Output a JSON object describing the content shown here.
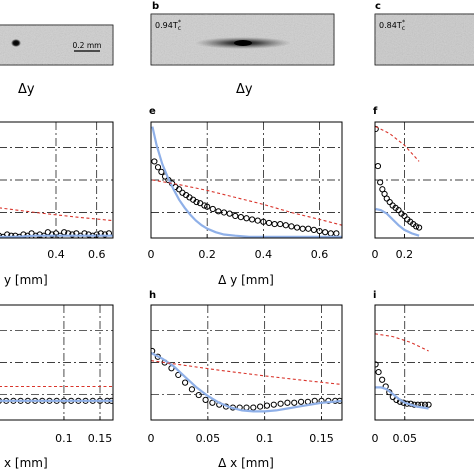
{
  "colors": {
    "experiment_marker": "#000000",
    "theory_solid": "#8fb0e8",
    "theory_dashed": "#d9342b",
    "grid": "#000000",
    "image_bg": "#cfcfcf"
  },
  "images": [
    {
      "panel": "a",
      "label": "",
      "temperature": "",
      "scalebar": "0.2 mm",
      "xlabel": "Δy"
    },
    {
      "panel": "b",
      "label": "b",
      "temperature": "0.94T",
      "temperature_sub": "c",
      "temperature_sup": "*",
      "xlabel": "Δy"
    },
    {
      "panel": "c",
      "label": "c",
      "temperature": "0.84T",
      "temperature_sub": "c",
      "temperature_sup": "*",
      "xlabel": ""
    }
  ],
  "chart_data": [
    {
      "panel": "d",
      "label": "",
      "type": "line",
      "xlabel": "y [mm]",
      "xlabel_prefix": "",
      "xlim": [
        0.12,
        0.68
      ],
      "xticks": [
        0.4,
        0.6
      ],
      "xticklabels": [
        "0.4",
        "0.6"
      ],
      "ylim": [
        0,
        1
      ],
      "grid": true,
      "series": [
        {
          "kind": "markers",
          "x": [
            0.12,
            0.14,
            0.16,
            0.18,
            0.2,
            0.22,
            0.24,
            0.26,
            0.28,
            0.3,
            0.32,
            0.34,
            0.36,
            0.38,
            0.4,
            0.42,
            0.44,
            0.46,
            0.48,
            0.5,
            0.52,
            0.54,
            0.56,
            0.58,
            0.6,
            0.62,
            0.64,
            0.66
          ],
          "y": [
            0.02,
            0.01,
            0.03,
            0.02,
            0.02,
            0.01,
            0.03,
            0.02,
            0.04,
            0.02,
            0.03,
            0.02,
            0.05,
            0.03,
            0.04,
            0.02,
            0.05,
            0.04,
            0.03,
            0.04,
            0.02,
            0.04,
            0.03,
            0.02,
            0.03,
            0.04,
            0.03,
            0.04
          ]
        },
        {
          "kind": "solid",
          "x": [
            0.12,
            0.2,
            0.3,
            0.4,
            0.5,
            0.6,
            0.68
          ],
          "y": [
            0.01,
            0.01,
            0.02,
            0.02,
            0.02,
            0.02,
            0.02
          ]
        },
        {
          "kind": "dashed",
          "x": [
            0.12,
            0.3,
            0.5,
            0.68
          ],
          "y": [
            0.26,
            0.22,
            0.18,
            0.15
          ]
        }
      ]
    },
    {
      "panel": "e",
      "label": "e",
      "type": "line",
      "xlabel": "y [mm]",
      "xlabel_prefix": "Δ",
      "xlim": [
        0,
        0.68
      ],
      "xticks": [
        0,
        0.2,
        0.4,
        0.6
      ],
      "xticklabels": [
        "0",
        "0.2",
        "0.4",
        "0.6"
      ],
      "ylim": [
        0,
        1
      ],
      "grid": true,
      "series": [
        {
          "kind": "markers",
          "x": [
            0.012,
            0.025,
            0.037,
            0.05,
            0.062,
            0.075,
            0.087,
            0.1,
            0.112,
            0.125,
            0.137,
            0.15,
            0.162,
            0.175,
            0.19,
            0.2,
            0.22,
            0.24,
            0.26,
            0.28,
            0.3,
            0.32,
            0.34,
            0.36,
            0.38,
            0.4,
            0.42,
            0.44,
            0.46,
            0.48,
            0.5,
            0.52,
            0.54,
            0.56,
            0.58,
            0.6,
            0.62,
            0.64,
            0.66
          ],
          "y": [
            0.66,
            0.61,
            0.57,
            0.53,
            0.5,
            0.47,
            0.44,
            0.42,
            0.39,
            0.37,
            0.35,
            0.33,
            0.31,
            0.3,
            0.28,
            0.27,
            0.25,
            0.23,
            0.22,
            0.21,
            0.19,
            0.18,
            0.17,
            0.16,
            0.15,
            0.14,
            0.13,
            0.12,
            0.12,
            0.11,
            0.1,
            0.09,
            0.08,
            0.08,
            0.07,
            0.06,
            0.05,
            0.04,
            0.04
          ]
        },
        {
          "kind": "solid",
          "x": [
            0.005,
            0.02,
            0.04,
            0.06,
            0.08,
            0.1,
            0.12,
            0.14,
            0.16,
            0.18,
            0.2,
            0.23,
            0.26,
            0.3,
            0.35,
            0.4,
            0.5,
            0.6,
            0.68
          ],
          "y": [
            0.96,
            0.8,
            0.64,
            0.52,
            0.42,
            0.33,
            0.26,
            0.2,
            0.15,
            0.11,
            0.08,
            0.05,
            0.03,
            0.02,
            0.01,
            0.01,
            0.01,
            0.01,
            0.01
          ]
        },
        {
          "kind": "dashed",
          "x": [
            0.005,
            0.1,
            0.2,
            0.3,
            0.4,
            0.5,
            0.6,
            0.68
          ],
          "y": [
            0.5,
            0.46,
            0.41,
            0.35,
            0.29,
            0.22,
            0.16,
            0.11
          ]
        }
      ]
    },
    {
      "panel": "f",
      "label": "f",
      "type": "line",
      "xlabel": "",
      "xlabel_prefix": "",
      "xlim": [
        0,
        0.68
      ],
      "xticks": [
        0,
        0.2
      ],
      "xticklabels": [
        "0",
        "0.2"
      ],
      "ylim": [
        0,
        1
      ],
      "grid": true,
      "series": [
        {
          "kind": "markers",
          "x": [
            0.005,
            0.02,
            0.035,
            0.05,
            0.065,
            0.08,
            0.1,
            0.12,
            0.14,
            0.16,
            0.18,
            0.2,
            0.22,
            0.24,
            0.26,
            0.28,
            0.3
          ],
          "y": [
            0.94,
            0.62,
            0.48,
            0.42,
            0.38,
            0.34,
            0.31,
            0.28,
            0.26,
            0.24,
            0.21,
            0.19,
            0.16,
            0.14,
            0.12,
            0.1,
            0.09
          ]
        },
        {
          "kind": "solid",
          "x": [
            0.005,
            0.04,
            0.08,
            0.12,
            0.16,
            0.2,
            0.25,
            0.3
          ],
          "y": [
            0.25,
            0.24,
            0.21,
            0.16,
            0.11,
            0.07,
            0.04,
            0.02
          ]
        },
        {
          "kind": "dashed",
          "x": [
            0.005,
            0.1,
            0.2,
            0.3
          ],
          "y": [
            0.96,
            0.9,
            0.8,
            0.66
          ]
        }
      ]
    },
    {
      "panel": "g",
      "label": "",
      "type": "line",
      "xlabel": "x [mm]",
      "xlabel_prefix": "",
      "xlim": [
        0.01,
        0.168
      ],
      "xticks": [
        0.1,
        0.15
      ],
      "xticklabels": [
        "0.1",
        "0.15"
      ],
      "ylim": [
        -0.2,
        1.0
      ],
      "grid": true,
      "series": [
        {
          "kind": "markers",
          "x": [
            0.01,
            0.02,
            0.03,
            0.04,
            0.05,
            0.06,
            0.07,
            0.08,
            0.09,
            0.1,
            0.11,
            0.12,
            0.13,
            0.14,
            0.15,
            0.16,
            0.166
          ],
          "y": [
            0,
            0,
            0,
            0,
            0,
            0,
            0,
            0,
            0,
            0,
            0,
            0,
            0,
            0,
            0,
            0,
            0
          ]
        },
        {
          "kind": "solid",
          "x": [
            0.01,
            0.168
          ],
          "y": [
            0,
            0
          ]
        },
        {
          "kind": "dashed",
          "x": [
            0.01,
            0.168
          ],
          "y": [
            0.15,
            0.15
          ]
        }
      ]
    },
    {
      "panel": "h",
      "label": "h",
      "type": "line",
      "xlabel": "x [mm]",
      "xlabel_prefix": "Δ",
      "xlim": [
        0,
        0.168
      ],
      "xticks": [
        0,
        0.05,
        0.1,
        0.15
      ],
      "xticklabels": [
        "0",
        "0.05",
        "0.1",
        "0.15"
      ],
      "ylim": [
        -0.2,
        1.0
      ],
      "grid": true,
      "series": [
        {
          "kind": "markers",
          "x": [
            0.001,
            0.006,
            0.012,
            0.018,
            0.024,
            0.03,
            0.036,
            0.042,
            0.048,
            0.054,
            0.06,
            0.066,
            0.072,
            0.078,
            0.084,
            0.09,
            0.096,
            0.102,
            0.108,
            0.114,
            0.12,
            0.126,
            0.132,
            0.138,
            0.144,
            0.15,
            0.156,
            0.162,
            0.166
          ],
          "y": [
            0.52,
            0.46,
            0.4,
            0.34,
            0.27,
            0.19,
            0.12,
            0.06,
            0.01,
            -0.02,
            -0.04,
            -0.06,
            -0.07,
            -0.07,
            -0.07,
            -0.07,
            -0.06,
            -0.05,
            -0.04,
            -0.03,
            -0.02,
            -0.02,
            -0.01,
            -0.01,
            0,
            0,
            0,
            0,
            0
          ]
        },
        {
          "kind": "solid",
          "x": [
            0,
            0.01,
            0.02,
            0.03,
            0.04,
            0.05,
            0.06,
            0.07,
            0.08,
            0.09,
            0.1,
            0.11,
            0.12,
            0.13,
            0.14,
            0.15,
            0.16,
            0.168
          ],
          "y": [
            0.5,
            0.44,
            0.36,
            0.25,
            0.14,
            0.05,
            -0.02,
            -0.07,
            -0.1,
            -0.11,
            -0.11,
            -0.1,
            -0.08,
            -0.06,
            -0.04,
            -0.02,
            -0.01,
            0
          ]
        },
        {
          "kind": "dashed",
          "x": [
            0,
            0.03,
            0.06,
            0.1,
            0.13,
            0.168
          ],
          "y": [
            0.42,
            0.37,
            0.32,
            0.26,
            0.22,
            0.17
          ]
        }
      ]
    },
    {
      "panel": "i",
      "label": "i",
      "type": "line",
      "xlabel": "",
      "xlabel_prefix": "",
      "xlim": [
        0,
        0.168
      ],
      "xticks": [
        0,
        0.05
      ],
      "xticklabels": [
        "0",
        "0.05"
      ],
      "ylim": [
        -0.2,
        1.0
      ],
      "grid": true,
      "series": [
        {
          "kind": "markers",
          "x": [
            0.001,
            0.006,
            0.012,
            0.018,
            0.024,
            0.03,
            0.036,
            0.042,
            0.048,
            0.054,
            0.06,
            0.066,
            0.072,
            0.078,
            0.084,
            0.09
          ],
          "y": [
            0.38,
            0.3,
            0.22,
            0.15,
            0.09,
            0.04,
            0.01,
            -0.01,
            -0.02,
            -0.03,
            -0.03,
            -0.04,
            -0.04,
            -0.04,
            -0.04,
            -0.04
          ]
        },
        {
          "kind": "solid",
          "x": [
            0,
            0.01,
            0.02,
            0.03,
            0.04,
            0.05,
            0.06,
            0.07,
            0.08,
            0.09
          ],
          "y": [
            0.14,
            0.14,
            0.12,
            0.07,
            0.02,
            -0.02,
            -0.04,
            -0.06,
            -0.07,
            -0.08
          ]
        },
        {
          "kind": "dashed",
          "x": [
            0,
            0.03,
            0.06,
            0.09
          ],
          "y": [
            0.7,
            0.67,
            0.61,
            0.52
          ]
        }
      ]
    }
  ]
}
